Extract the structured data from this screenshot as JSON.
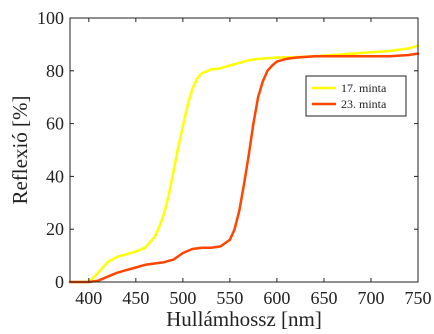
{
  "chart_data": {
    "type": "line",
    "title": "",
    "xlabel": "Hullámhossz [nm]",
    "ylabel": "Reflexió [%]",
    "xlim": [
      380,
      750
    ],
    "ylim": [
      0,
      100
    ],
    "xticks": [
      "400",
      "450",
      "500",
      "550",
      "600",
      "650",
      "700",
      "750"
    ],
    "yticks": [
      "0",
      "20",
      "40",
      "60",
      "80",
      "100"
    ],
    "grid": false,
    "legend_position": "top-right",
    "series": [
      {
        "name": "17. minta",
        "color": "#FFFF00",
        "x": [
          380,
          400,
          410,
          420,
          430,
          440,
          450,
          460,
          470,
          475,
          480,
          485,
          490,
          495,
          500,
          505,
          510,
          515,
          520,
          530,
          540,
          550,
          560,
          570,
          580,
          600,
          620,
          640,
          660,
          680,
          700,
          720,
          740,
          750
        ],
        "y": [
          0,
          0,
          3.5,
          7.5,
          9.5,
          10.5,
          11.5,
          13,
          17,
          21,
          26,
          33,
          42,
          51,
          59,
          67,
          73,
          77,
          79,
          80.5,
          81,
          82,
          83,
          84,
          84.5,
          85,
          85.2,
          85.5,
          86,
          86.5,
          87,
          87.5,
          88.5,
          89.5
        ]
      },
      {
        "name": "23. minta",
        "color": "#FF4500",
        "x": [
          380,
          400,
          410,
          420,
          430,
          440,
          450,
          460,
          470,
          480,
          490,
          500,
          510,
          520,
          530,
          540,
          550,
          555,
          560,
          565,
          570,
          575,
          580,
          585,
          590,
          595,
          600,
          610,
          620,
          640,
          660,
          680,
          700,
          720,
          740,
          750
        ],
        "y": [
          0,
          0,
          0.5,
          2,
          3.5,
          4.5,
          5.5,
          6.5,
          7,
          7.5,
          8.5,
          11,
          12.5,
          13,
          13,
          13.5,
          16,
          20,
          27,
          37,
          48,
          60,
          70,
          76,
          80,
          82,
          83.5,
          84.5,
          85,
          85.5,
          85.5,
          85.5,
          85.5,
          85.5,
          86,
          86.5
        ]
      }
    ]
  }
}
